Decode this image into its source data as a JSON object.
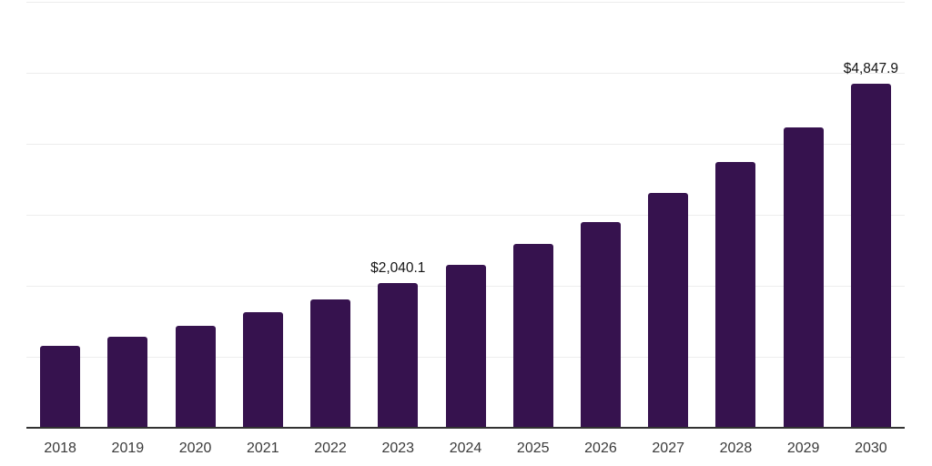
{
  "chart_data": {
    "type": "bar",
    "title": "",
    "xlabel": "",
    "ylabel": "",
    "categories": [
      "2018",
      "2019",
      "2020",
      "2021",
      "2022",
      "2023",
      "2024",
      "2025",
      "2026",
      "2027",
      "2028",
      "2029",
      "2030"
    ],
    "values": [
      1148,
      1276,
      1434,
      1626,
      1809,
      2040.1,
      2294,
      2584,
      2904,
      3308,
      3742,
      4237,
      4847.9
    ],
    "labeled_points": [
      {
        "category": "2023",
        "label": "$2,040.1"
      },
      {
        "category": "2030",
        "label": "$4,847.9"
      }
    ],
    "ylim": [
      0,
      6000
    ],
    "gridline_step": 1000,
    "grid": "horizontal",
    "legend_position": "none",
    "bar_color": "#36124E",
    "gridline_color": "#ededed",
    "axis_line_color": "#323232",
    "tick_label_color": "#3a3a3a",
    "value_label_color": "#141414",
    "background_color": "#ffffff"
  }
}
